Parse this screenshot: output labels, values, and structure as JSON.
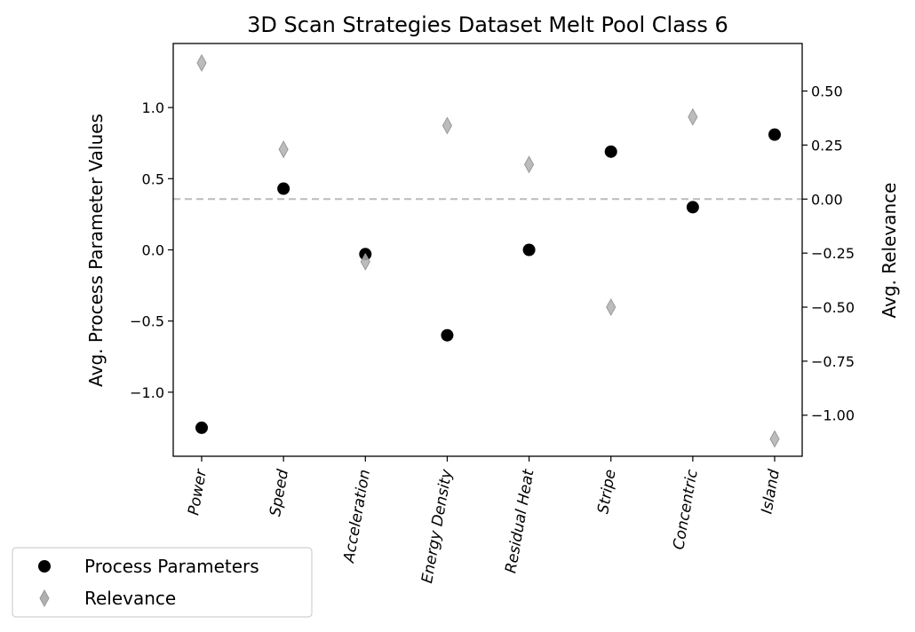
{
  "chart_data": {
    "type": "scatter",
    "title": "3D Scan Strategies Dataset Melt Pool Class 6",
    "categories": [
      "Power",
      "Speed",
      "Acceleration",
      "Energy Density",
      "Residual Heat",
      "Stripe",
      "Concentric",
      "Island"
    ],
    "ylabel_left": "Avg. Process Parameter Values",
    "ylabel_right": "Avg. Relevance",
    "ylim_left": [
      -1.45,
      1.45
    ],
    "ylim_right": [
      -1.19,
      0.72
    ],
    "yticks_left": [
      "−1.0",
      "−0.5",
      "0.0",
      "0.5",
      "1.0"
    ],
    "yticks_left_values": [
      -1.0,
      -0.5,
      0.0,
      0.5,
      1.0
    ],
    "yticks_right": [
      "−1.00",
      "−0.75",
      "−0.50",
      "−0.25",
      "0.00",
      "0.25",
      "0.50"
    ],
    "yticks_right_values": [
      -1.0,
      -0.75,
      -0.5,
      -0.25,
      0.0,
      0.25,
      0.5
    ],
    "reference_line": {
      "axis": "right",
      "value": 0.0,
      "style": "dashed",
      "color": "#bbbbbb"
    },
    "series": [
      {
        "name": "Process Parameters",
        "axis": "left",
        "marker": "circle",
        "color": "#000000",
        "values": [
          -1.25,
          0.43,
          -0.03,
          -0.6,
          0.0,
          0.69,
          0.3,
          0.81
        ]
      },
      {
        "name": "Relevance",
        "axis": "right",
        "marker": "thin_diamond",
        "color": "#aaaaaa",
        "values": [
          0.63,
          0.23,
          -0.29,
          0.34,
          0.16,
          -0.5,
          0.38,
          -1.11
        ]
      }
    ],
    "legend": {
      "placement": "bottom-left",
      "entries": [
        "Process Parameters",
        "Relevance"
      ]
    },
    "grid": false
  }
}
